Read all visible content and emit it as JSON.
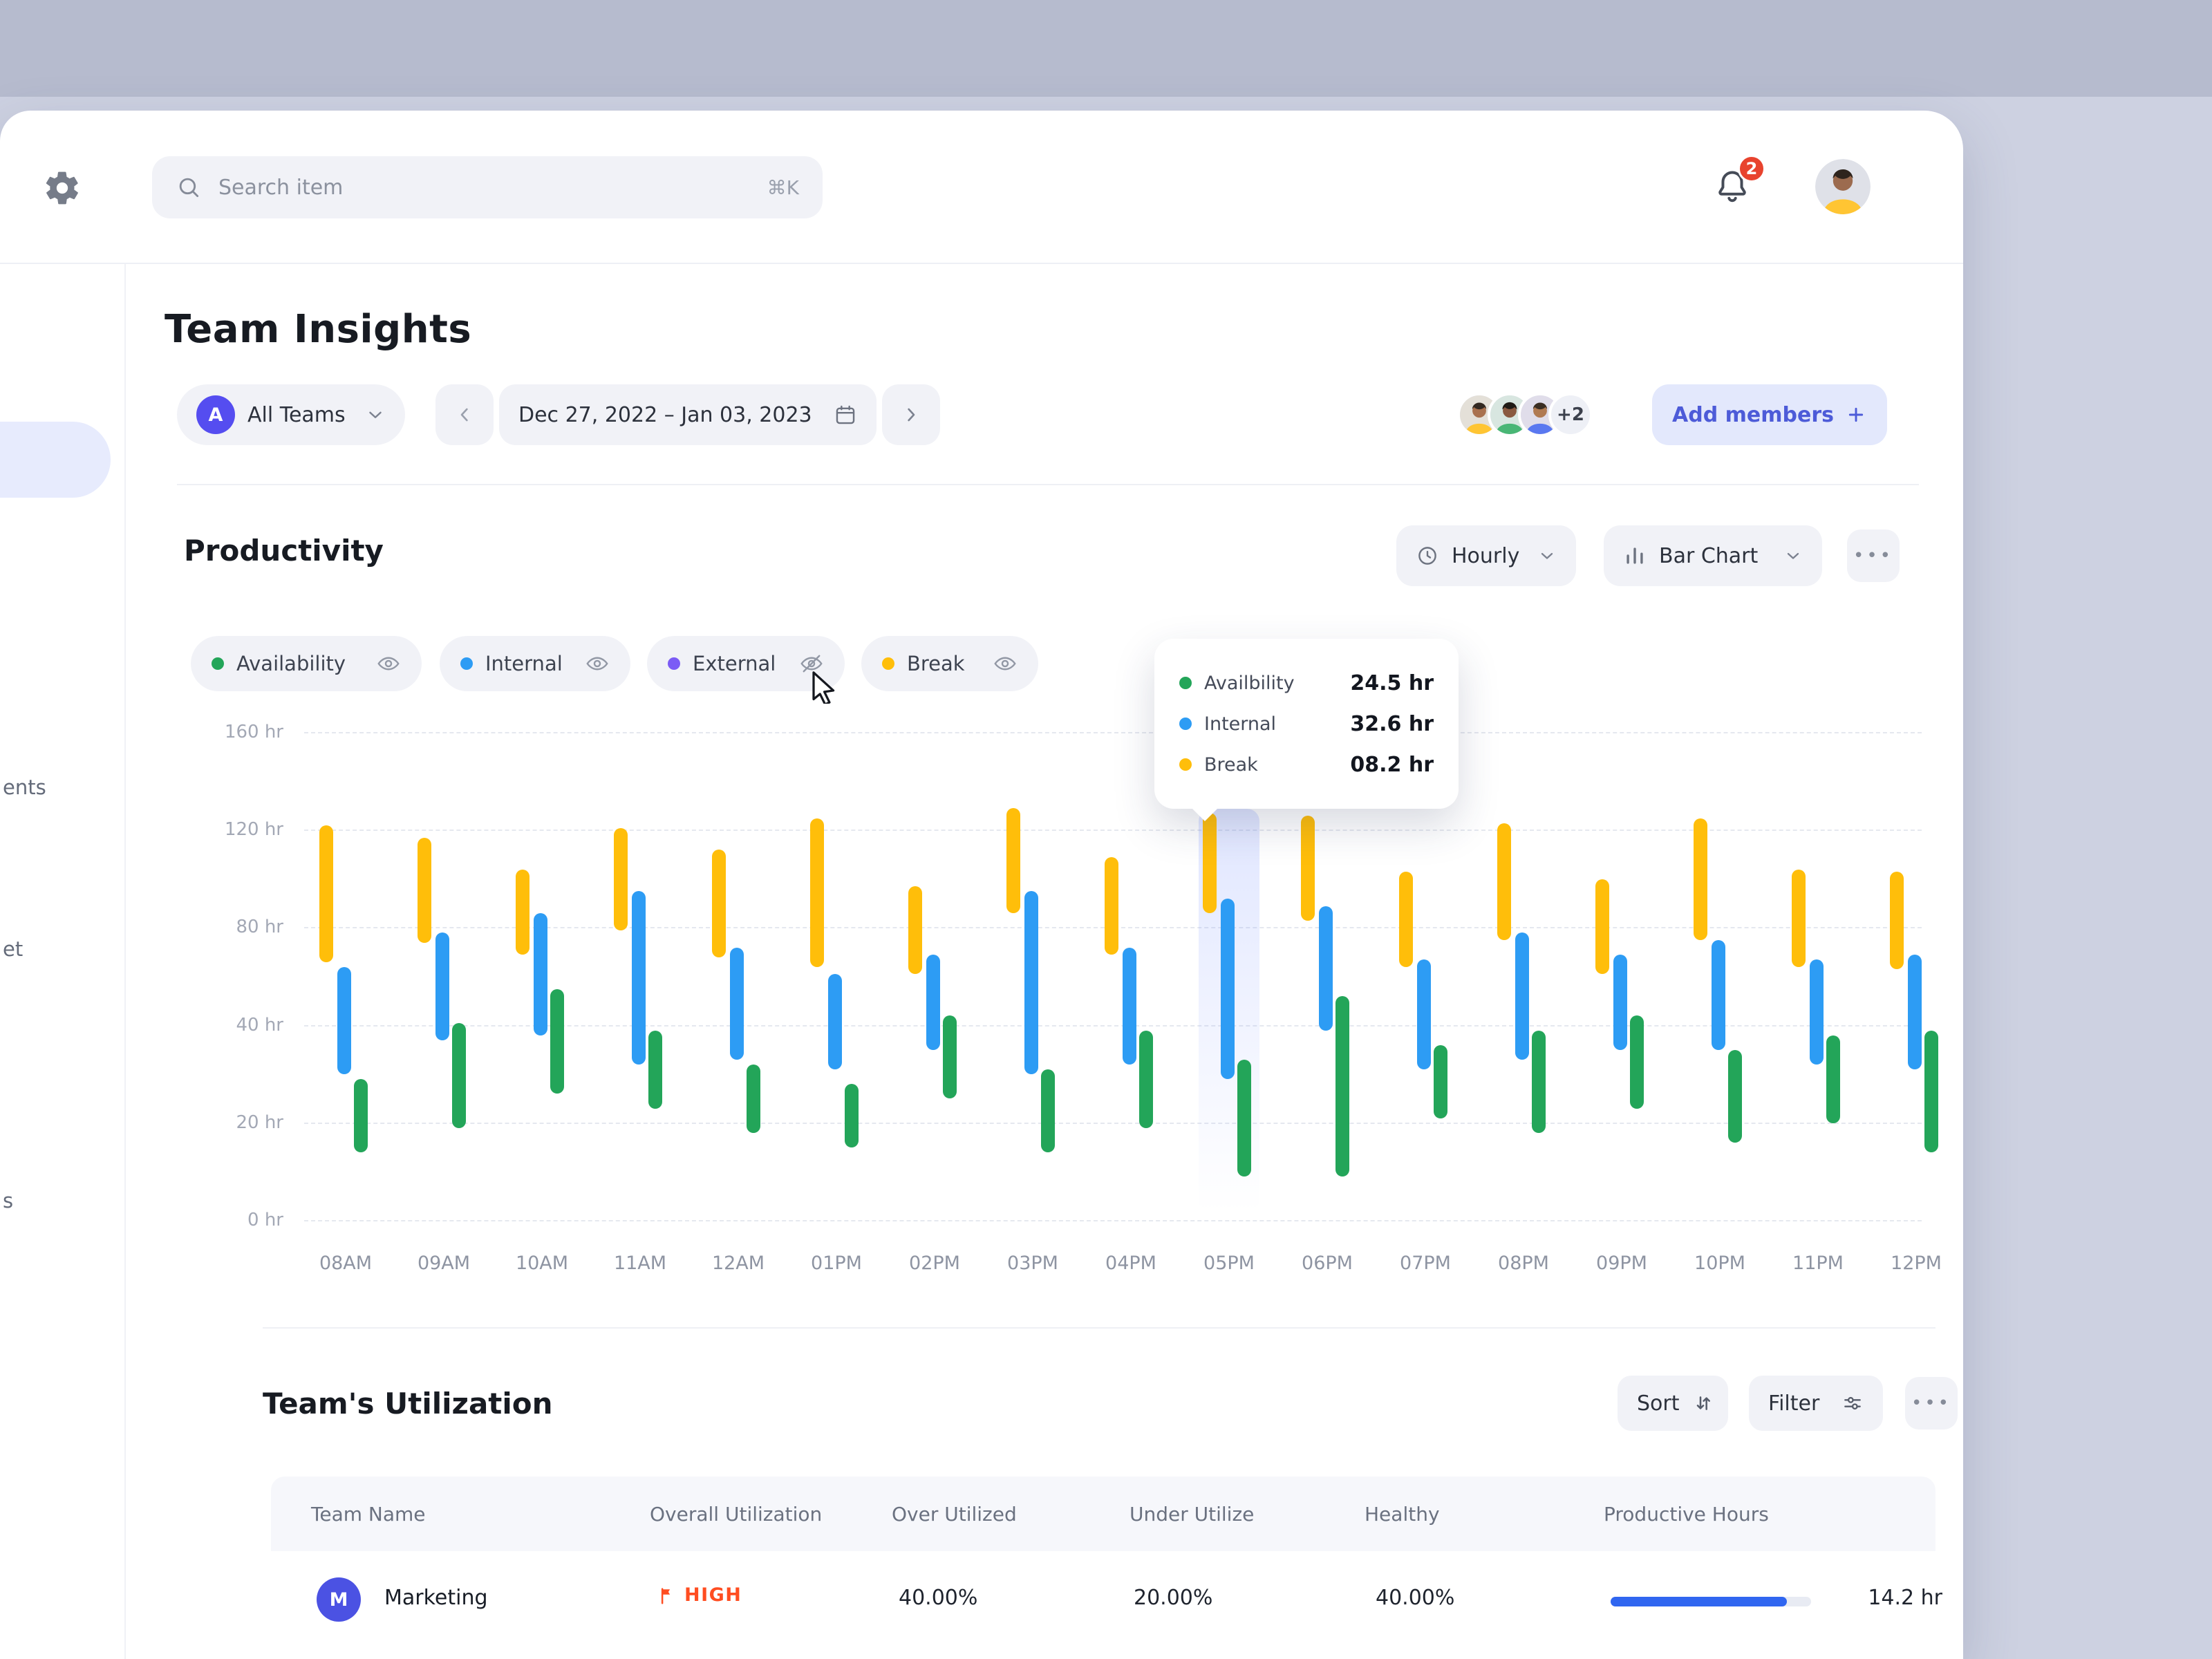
{
  "app": {
    "topbar": {
      "search_placeholder": "Search item",
      "search_shortcut": "⌘K",
      "notification_count": "2"
    },
    "sidebar": {
      "partial_labels": [
        "ents",
        "et",
        "s"
      ]
    },
    "page": {
      "title": "Team Insights",
      "team_filter": {
        "avatar_initial": "A",
        "label": "All Teams"
      },
      "date_range": {
        "label": "Dec 27, 2022 – Jan 03, 2023"
      },
      "members": {
        "overflow_badge": "+2",
        "add_button": "Add members"
      }
    },
    "productivity": {
      "title": "Productivity",
      "interval_selector": "Hourly",
      "chart_type_selector": "Bar Chart",
      "more_label": "•••",
      "legend": [
        {
          "label": "Availability",
          "color": "#23A559",
          "visible": true
        },
        {
          "label": "Internal",
          "color": "#2D9CF4",
          "visible": true
        },
        {
          "label": "External",
          "color": "#7B5BF5",
          "visible": false
        },
        {
          "label": "Break",
          "color": "#FFBE0A",
          "visible": true
        }
      ],
      "tooltip": {
        "rows": [
          {
            "label": "Availbility",
            "value": "24.5 hr",
            "color": "#23A559"
          },
          {
            "label": "Internal",
            "value": "32.6 hr",
            "color": "#2D9CF4"
          },
          {
            "label": "Break",
            "value": "08.2 hr",
            "color": "#FFBE0A"
          }
        ]
      }
    },
    "utilization": {
      "title": "Team's Utilization",
      "sort_label": "Sort",
      "filter_label": "Filter",
      "more_label": "•••",
      "columns": [
        "Team Name",
        "Overall Utilization",
        "Over Utilized",
        "Under Utilize",
        "Healthy",
        "Productive Hours"
      ],
      "rows": [
        {
          "initial": "M",
          "name": "Marketing",
          "utilization_flag": "HIGH",
          "over_utilized": "40.00%",
          "under_utilized": "20.00%",
          "healthy": "40.00%",
          "productive_hours": "14.2 hr",
          "progress_pct": 88
        }
      ]
    },
    "colors": {
      "accent_indigo": "#4d5bd8",
      "status_high": "#ff4d21",
      "progress_blue": "#3066f0"
    }
  },
  "chart_data": {
    "type": "bar",
    "subtype": "floating-segment-columns",
    "title": "Productivity (hours per time slot)",
    "categories": [
      "08AM",
      "09AM",
      "10AM",
      "11AM",
      "12AM",
      "01PM",
      "02PM",
      "03PM",
      "04PM",
      "05PM",
      "06PM",
      "07PM",
      "08PM",
      "09PM",
      "10PM",
      "11PM",
      "12PM"
    ],
    "ytick_labels": [
      "0 hr",
      "20 hr",
      "40 hr",
      "80 hr",
      "120 hr",
      "160 hr"
    ],
    "ytick_values": [
      0,
      20,
      40,
      80,
      120,
      160
    ],
    "nonlinear_axis": true,
    "grid": "dashed-horizontal",
    "highlighted_category": "05PM",
    "series_order": [
      "break",
      "internal",
      "availability"
    ],
    "series_colors": {
      "break": "#FFBE0A",
      "internal": "#2D9CF4",
      "availability": "#23A559"
    },
    "hidden_series": [
      "external"
    ],
    "columns": [
      {
        "t": "08AM",
        "break": [
          66,
          122
        ],
        "internal": [
          30,
          64
        ],
        "availability": [
          14,
          29
        ]
      },
      {
        "t": "09AM",
        "break": [
          74,
          117
        ],
        "internal": [
          37,
          78
        ],
        "availability": [
          19,
          41
        ]
      },
      {
        "t": "10AM",
        "break": [
          69,
          104
        ],
        "internal": [
          38,
          86
        ],
        "availability": [
          26,
          55
        ]
      },
      {
        "t": "11AM",
        "break": [
          79,
          121
        ],
        "internal": [
          32,
          95
        ],
        "availability": [
          23,
          39
        ]
      },
      {
        "t": "12AM",
        "break": [
          68,
          112
        ],
        "internal": [
          33,
          72
        ],
        "availability": [
          18,
          32
        ]
      },
      {
        "t": "01PM",
        "break": [
          64,
          125
        ],
        "internal": [
          31,
          61
        ],
        "availability": [
          15,
          28
        ]
      },
      {
        "t": "02PM",
        "break": [
          61,
          97
        ],
        "internal": [
          35,
          69
        ],
        "availability": [
          25,
          44
        ]
      },
      {
        "t": "03PM",
        "break": [
          86,
          129
        ],
        "internal": [
          30,
          95
        ],
        "availability": [
          14,
          31
        ]
      },
      {
        "t": "04PM",
        "break": [
          69,
          109
        ],
        "internal": [
          32,
          72
        ],
        "availability": [
          19,
          39
        ]
      },
      {
        "t": "05PM",
        "break": [
          86,
          127
        ],
        "internal": [
          29,
          92
        ],
        "availability": [
          9,
          33
        ]
      },
      {
        "t": "06PM",
        "break": [
          83,
          126
        ],
        "internal": [
          39,
          89
        ],
        "availability": [
          9,
          52
        ]
      },
      {
        "t": "07PM",
        "break": [
          64,
          103
        ],
        "internal": [
          31,
          67
        ],
        "availability": [
          21,
          36
        ]
      },
      {
        "t": "08PM",
        "break": [
          75,
          123
        ],
        "internal": [
          33,
          78
        ],
        "availability": [
          18,
          39
        ]
      },
      {
        "t": "09PM",
        "break": [
          61,
          100
        ],
        "internal": [
          35,
          69
        ],
        "availability": [
          23,
          44
        ]
      },
      {
        "t": "10PM",
        "break": [
          75,
          125
        ],
        "internal": [
          35,
          75
        ],
        "availability": [
          16,
          35
        ]
      },
      {
        "t": "11PM",
        "break": [
          64,
          104
        ],
        "internal": [
          32,
          67
        ],
        "availability": [
          20,
          38
        ]
      },
      {
        "t": "12PM",
        "break": [
          63,
          103
        ],
        "internal": [
          31,
          69
        ],
        "availability": [
          14,
          39
        ]
      }
    ]
  }
}
